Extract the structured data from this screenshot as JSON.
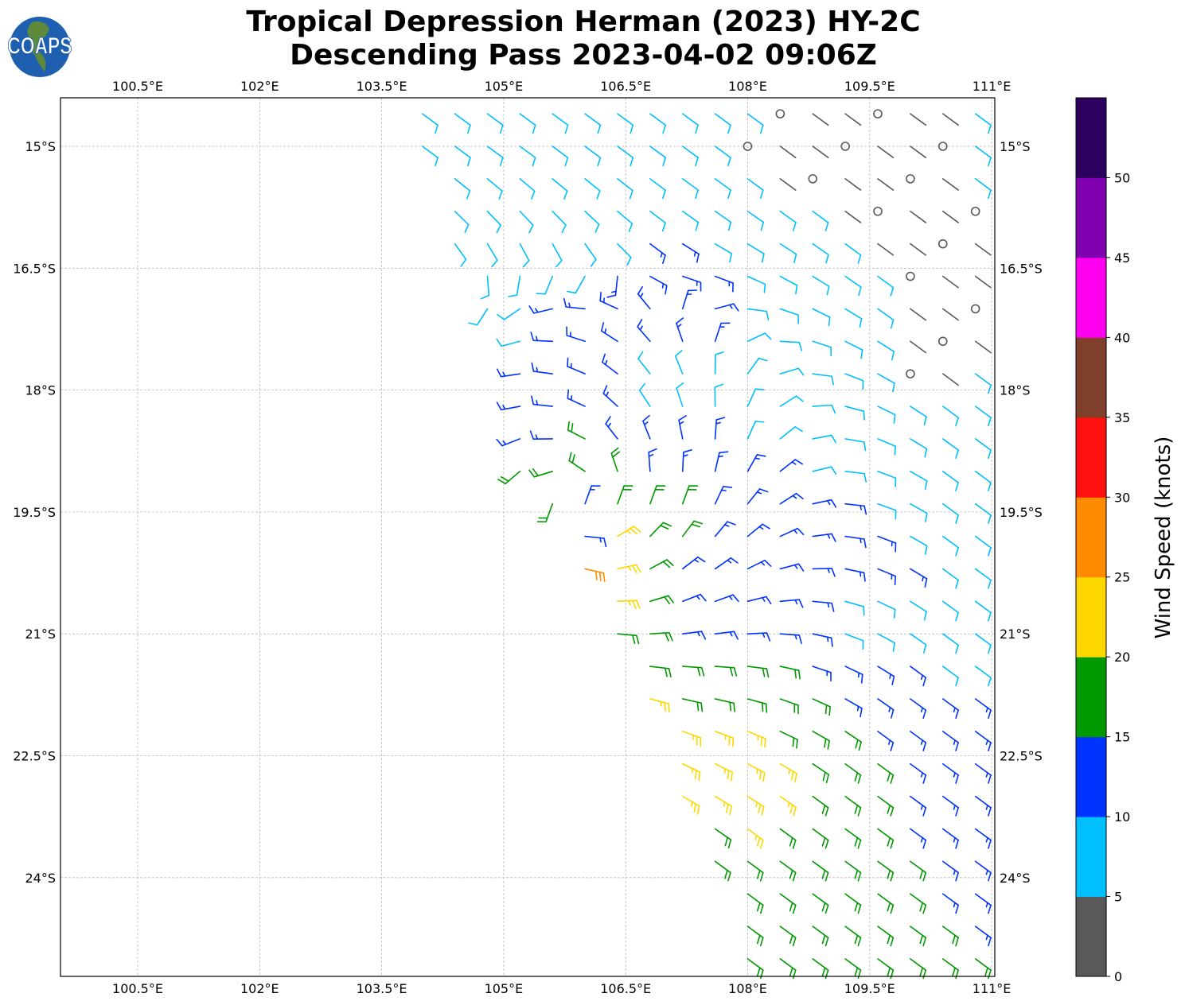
{
  "title_line1": "Tropical Depression Herman (2023) HY-2C",
  "title_line2": "Descending Pass 2023-04-02 09:06Z",
  "logo_text": "COAPS",
  "chart_data": {
    "type": "wind-barb map",
    "lon_ticks": [
      100.5,
      102,
      103.5,
      105,
      106.5,
      108,
      109.5,
      111
    ],
    "lon_tick_labels": [
      "100.5°E",
      "102°E",
      "103.5°E",
      "105°E",
      "106.5°E",
      "108°E",
      "109.5°E",
      "111°E"
    ],
    "lat_ticks": [
      15,
      16.5,
      18,
      19.5,
      21,
      22.5,
      24
    ],
    "lat_tick_labels": [
      "15°S",
      "16.5°S",
      "18°S",
      "19.5°S",
      "21°S",
      "22.5°S",
      "24°S"
    ],
    "lon_range": [
      99.55,
      111.04
    ],
    "lat_range_south": [
      14.4,
      25.21
    ],
    "grid": true,
    "colorbar": {
      "label": "Wind Speed (knots)",
      "bounds": [
        0,
        5,
        10,
        15,
        20,
        25,
        30,
        35,
        40,
        45,
        50,
        55
      ],
      "tick_labels": [
        "0",
        "5",
        "10",
        "15",
        "20",
        "25",
        "30",
        "35",
        "40",
        "45",
        "50"
      ],
      "colors": [
        "#595959",
        "#00bfff",
        "#0033ff",
        "#009900",
        "#ffd700",
        "#ff8c00",
        "#ff1010",
        "#803f2a",
        "#ff00f0",
        "#8000b0",
        "#2d0060"
      ]
    },
    "storm_center": {
      "lon": 105.9,
      "lat_south": 19.4
    },
    "barb_grid": {
      "lon_start": 103.6,
      "lon_step": 0.4,
      "lat_start_south": 14.6,
      "lat_step": 0.4,
      "bin_legend": "digit = colorbar bin index (0: 0-5 kt, 1: 5-10, 2: 10-15, 3: 15-20, 4: 20-25, 5: 25-30); '.' = no data",
      "rows": [
        ".11111111111000000 1",
        ".11111111110000000 1",
        "..1111111111000000 1",
        "..11111111111100000",
        "..1111112211111 0000",
        "...11112222111110 00",
        "...1122222211111000",
        "....12222221111 1000",
        "....22221111111 1001",
        "....222211111111111",
        "....2232222111111 11",
        "....333322222111111",
        ".....3233322222 1111",
        "......2433222222111",
        "......5432222222211",
        ".......432222211111",
        ".......332222211111",
        "........33333222211",
        "........43333322222",
        ".........4443332222",
        ".........4444333222",
        ".........4444333222",
        "..........343333222",
        "..........333333322",
        "...........33333322",
        "...........33333332",
        "...........33333333"
      ]
    }
  }
}
